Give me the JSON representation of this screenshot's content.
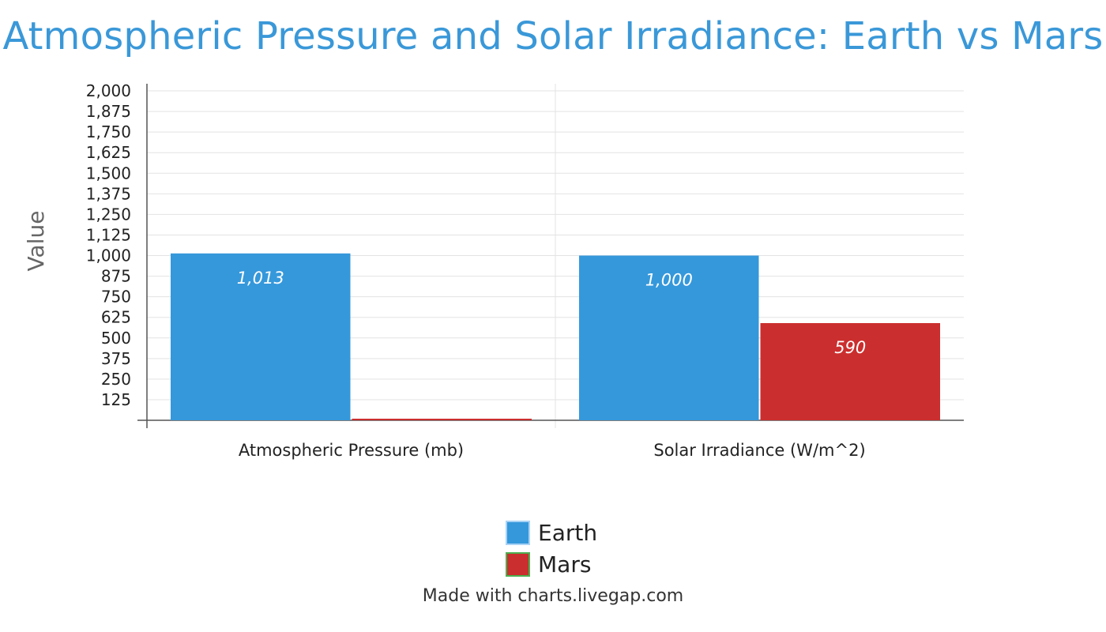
{
  "chart_data": {
    "type": "bar",
    "title": "Atmospheric Pressure and Solar Irradiance: Earth vs Mars",
    "ylabel": "Value",
    "xlabel": "",
    "categories": [
      "Atmospheric Pressure (mb)",
      "Solar Irradiance (W/m^2)"
    ],
    "series": [
      {
        "name": "Earth",
        "values": [
          1013,
          1000
        ],
        "color": "#3598db"
      },
      {
        "name": "Mars",
        "values": [
          6,
          590
        ],
        "color": "#cb2e2e"
      }
    ],
    "data_labels": [
      [
        "1,013",
        "1,000"
      ],
      [
        "",
        "590"
      ]
    ],
    "ylim": [
      0,
      2000
    ],
    "yticks": [
      125,
      250,
      375,
      500,
      625,
      750,
      875,
      1000,
      1125,
      1250,
      1375,
      1500,
      1625,
      1750,
      1875,
      2000
    ],
    "grid": true,
    "legend_position": "bottom-center"
  },
  "legend": {
    "items": [
      {
        "label": "Earth",
        "color": "#3598db",
        "border": "#a9d3f5"
      },
      {
        "label": "Mars",
        "color": "#cb2e2e",
        "border": "#4caf50"
      }
    ]
  },
  "footer": {
    "text": "Made with charts.livegap.com"
  }
}
